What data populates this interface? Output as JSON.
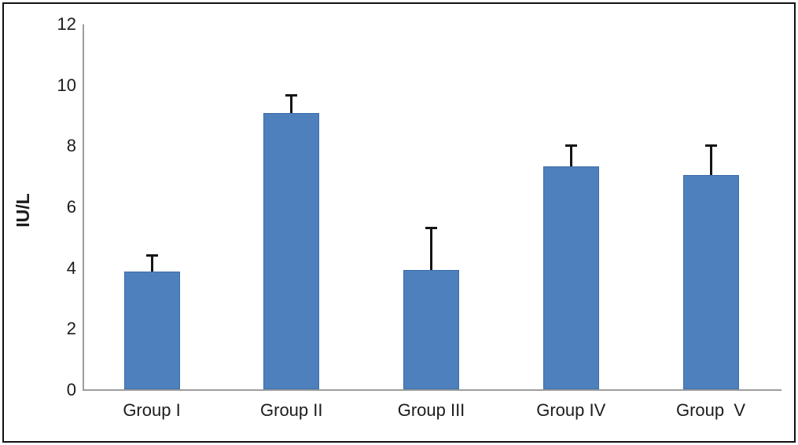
{
  "chart_data": {
    "type": "bar",
    "title": "",
    "xlabel": "",
    "ylabel": "IU/L",
    "categories": [
      "Group I",
      "Group II",
      "Group III",
      "Group IV",
      "Group  V"
    ],
    "values": [
      3.9,
      9.1,
      3.95,
      7.35,
      7.05
    ],
    "error_up": [
      0.55,
      0.6,
      1.4,
      0.72,
      1.0
    ],
    "ylim": [
      0,
      12
    ],
    "yticks": [
      0,
      2,
      4,
      6,
      8,
      10,
      12
    ],
    "grid": false,
    "legend": "none",
    "colors": {
      "bar_fill": "#4d80bd",
      "bar_border": "#3d6da8",
      "error_bar": "#151515",
      "axis_line": "#9d9d9d",
      "text": "#1c1c1c",
      "background": "#ffffff",
      "frame_border": "#111111"
    }
  }
}
